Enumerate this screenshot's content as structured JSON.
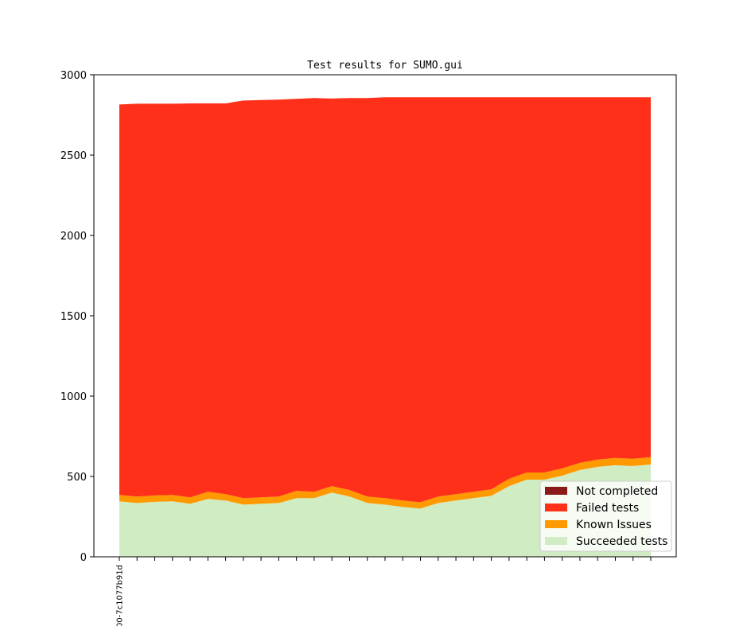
{
  "chart_data": {
    "type": "area",
    "title": "Test results for SUMO.gui",
    "xlabel": "",
    "ylabel": "",
    "ylim": [
      0,
      3000
    ],
    "yticks": [
      0,
      500,
      1000,
      1500,
      2000,
      2500,
      3000
    ],
    "x_tick_count": 31,
    "x_tick_labels": [
      "00-7c1077b91d"
    ],
    "legend_position": "lower-right",
    "grid": false,
    "series": [
      {
        "name": "Succeeded tests",
        "color": "#d0ecc2",
        "values": [
          345,
          335,
          342,
          345,
          330,
          360,
          350,
          325,
          330,
          335,
          365,
          365,
          400,
          375,
          335,
          325,
          310,
          300,
          335,
          350,
          365,
          380,
          440,
          480,
          480,
          505,
          540,
          560,
          570,
          565,
          575
        ]
      },
      {
        "name": "Known Issues",
        "color": "#ff9900",
        "values": [
          40,
          40,
          40,
          40,
          40,
          45,
          40,
          40,
          40,
          40,
          45,
          40,
          40,
          40,
          40,
          40,
          40,
          40,
          40,
          40,
          40,
          40,
          45,
          45,
          45,
          45,
          45,
          45,
          45,
          45,
          45
        ]
      },
      {
        "name": "Failed tests",
        "color": "#ff3019",
        "values": [
          2430,
          2445,
          2438,
          2435,
          2452,
          2417,
          2432,
          2475,
          2473,
          2470,
          2440,
          2450,
          2412,
          2440,
          2480,
          2495,
          2510,
          2520,
          2485,
          2470,
          2455,
          2440,
          2375,
          2335,
          2335,
          2310,
          2275,
          2255,
          2245,
          2250,
          2240
        ]
      },
      {
        "name": "Not completed",
        "color": "#8b1a1a",
        "values": [
          0,
          0,
          0,
          0,
          0,
          0,
          0,
          0,
          0,
          0,
          0,
          0,
          0,
          0,
          0,
          0,
          0,
          0,
          0,
          0,
          0,
          0,
          0,
          0,
          0,
          0,
          0,
          0,
          0,
          0,
          0
        ]
      }
    ],
    "legend_order": [
      "Not completed",
      "Failed tests",
      "Known Issues",
      "Succeeded tests"
    ]
  }
}
